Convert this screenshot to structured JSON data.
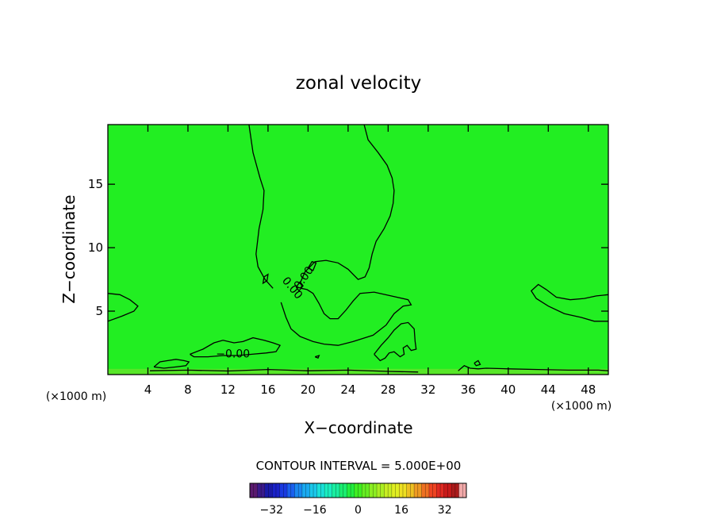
{
  "chart_data": {
    "type": "heatmap",
    "title": "zonal velocity",
    "xlabel": "X−coordinate",
    "ylabel": "Z−coordinate",
    "x_unit_left": "(×1000 m)",
    "x_unit_right": "(×1000 m)",
    "xlim": [
      0,
      50
    ],
    "ylim": [
      0,
      19.7
    ],
    "x_ticks": [
      4,
      8,
      12,
      16,
      20,
      24,
      28,
      32,
      36,
      40,
      44,
      48
    ],
    "y_ticks": [
      5,
      10,
      15
    ],
    "x_tick_labels": [
      "4",
      "8",
      "12",
      "16",
      "20",
      "24",
      "28",
      "32",
      "36",
      "40",
      "44",
      "48"
    ],
    "y_tick_labels": [
      "5",
      "10",
      "15"
    ],
    "field_color": "#22ee22",
    "contour_interval_text": "CONTOUR INTERVAL = 5.000E+00",
    "contour_labels": [
      {
        "text": "0.00",
        "x": 18.4,
        "z": 6.8,
        "angle": 50
      },
      {
        "text": "0.00",
        "x": 19.6,
        "z": 7.6,
        "angle": -55
      },
      {
        "text": "−0.00",
        "x": 12.5,
        "z": 1.6,
        "angle": 0
      }
    ],
    "contours": [
      {
        "level": 0,
        "points": [
          [
            14.1,
            19.7
          ],
          [
            14.5,
            17.5
          ],
          [
            15.2,
            15.5
          ],
          [
            15.6,
            14.5
          ],
          [
            15.5,
            13.0
          ],
          [
            15.1,
            11.5
          ],
          [
            14.8,
            9.5
          ],
          [
            15.0,
            8.5
          ],
          [
            15.7,
            7.5
          ],
          [
            16.5,
            6.8
          ]
        ]
      },
      {
        "level": 0,
        "points": [
          [
            17.3,
            5.7
          ],
          [
            17.8,
            4.5
          ],
          [
            18.3,
            3.6
          ],
          [
            19.2,
            3.0
          ],
          [
            20.5,
            2.6
          ],
          [
            21.6,
            2.4
          ],
          [
            23.0,
            2.3
          ],
          [
            24.5,
            2.6
          ],
          [
            26.5,
            3.1
          ],
          [
            27.8,
            3.9
          ],
          [
            28.6,
            4.8
          ],
          [
            29.5,
            5.4
          ],
          [
            30.3,
            5.5
          ],
          [
            30.0,
            5.9
          ],
          [
            28.3,
            6.2
          ],
          [
            26.6,
            6.5
          ],
          [
            25.2,
            6.4
          ],
          [
            24.5,
            5.8
          ],
          [
            23.8,
            5.1
          ],
          [
            23.0,
            4.4
          ],
          [
            22.2,
            4.4
          ],
          [
            21.6,
            4.8
          ],
          [
            21.1,
            5.6
          ],
          [
            20.5,
            6.4
          ],
          [
            19.9,
            6.7
          ],
          [
            19.3,
            6.8
          ]
        ]
      },
      {
        "level": 0,
        "points": [
          [
            19.2,
            7.2
          ],
          [
            19.7,
            8.1
          ],
          [
            20.7,
            8.9
          ],
          [
            21.8,
            9.0
          ],
          [
            23.0,
            8.8
          ],
          [
            24.0,
            8.3
          ],
          [
            25.0,
            7.5
          ],
          [
            25.7,
            7.7
          ],
          [
            26.1,
            8.4
          ],
          [
            26.4,
            9.5
          ],
          [
            26.8,
            10.5
          ],
          [
            27.6,
            11.5
          ],
          [
            28.2,
            12.5
          ],
          [
            28.5,
            13.5
          ],
          [
            28.6,
            14.5
          ],
          [
            28.4,
            15.5
          ],
          [
            27.9,
            16.5
          ],
          [
            27.0,
            17.5
          ],
          [
            26.0,
            18.5
          ],
          [
            25.6,
            19.7
          ]
        ]
      },
      {
        "level": 0,
        "points": [
          [
            0.0,
            6.4
          ],
          [
            1.2,
            6.3
          ],
          [
            2.2,
            5.9
          ],
          [
            3.0,
            5.4
          ],
          [
            2.6,
            5.0
          ],
          [
            1.4,
            4.6
          ],
          [
            0.0,
            4.2
          ]
        ]
      },
      {
        "level": 0,
        "points": [
          [
            50.0,
            6.3
          ],
          [
            48.8,
            6.2
          ],
          [
            47.6,
            6.0
          ],
          [
            46.2,
            5.9
          ],
          [
            44.8,
            6.1
          ],
          [
            43.8,
            6.7
          ],
          [
            43.0,
            7.1
          ],
          [
            42.3,
            6.6
          ],
          [
            42.8,
            6.0
          ],
          [
            44.0,
            5.4
          ],
          [
            45.6,
            4.8
          ],
          [
            47.3,
            4.5
          ],
          [
            48.6,
            4.2
          ],
          [
            50.0,
            4.2
          ]
        ]
      },
      {
        "level": 0,
        "points": [
          [
            8.2,
            1.6
          ],
          [
            9.5,
            2.0
          ],
          [
            10.6,
            2.5
          ],
          [
            11.5,
            2.7
          ],
          [
            12.6,
            2.5
          ],
          [
            13.5,
            2.6
          ],
          [
            14.5,
            2.9
          ],
          [
            15.6,
            2.7
          ],
          [
            16.5,
            2.5
          ],
          [
            17.2,
            2.3
          ],
          [
            16.8,
            1.8
          ],
          [
            15.8,
            1.7
          ],
          [
            14.4,
            1.6
          ],
          [
            13.0,
            1.5
          ],
          [
            11.5,
            1.5
          ],
          [
            10.0,
            1.4
          ],
          [
            8.6,
            1.4
          ],
          [
            8.2,
            1.6
          ]
        ]
      },
      {
        "level": 0,
        "points": [
          [
            4.6,
            0.6
          ],
          [
            5.2,
            1.0
          ],
          [
            6.0,
            1.1
          ],
          [
            6.8,
            1.2
          ],
          [
            7.6,
            1.1
          ],
          [
            8.1,
            1.0
          ],
          [
            7.8,
            0.7
          ],
          [
            6.8,
            0.6
          ],
          [
            5.6,
            0.5
          ],
          [
            4.6,
            0.6
          ]
        ]
      },
      {
        "level": 0,
        "points": [
          [
            26.6,
            1.6
          ],
          [
            27.3,
            2.3
          ],
          [
            28.0,
            2.9
          ],
          [
            28.6,
            3.5
          ],
          [
            29.3,
            4.0
          ],
          [
            30.0,
            4.1
          ],
          [
            30.6,
            3.6
          ],
          [
            30.7,
            2.6
          ],
          [
            30.8,
            2.0
          ],
          [
            30.3,
            1.9
          ],
          [
            29.9,
            2.3
          ],
          [
            29.5,
            2.1
          ],
          [
            29.6,
            1.6
          ],
          [
            29.2,
            1.4
          ],
          [
            28.6,
            1.8
          ],
          [
            28.1,
            1.7
          ],
          [
            27.7,
            1.3
          ],
          [
            27.2,
            1.1
          ],
          [
            26.6,
            1.6
          ]
        ]
      },
      {
        "level": 0,
        "points": [
          [
            4.2,
            0.3
          ],
          [
            8.0,
            0.35
          ],
          [
            12.0,
            0.28
          ],
          [
            16.0,
            0.4
          ],
          [
            20.0,
            0.3
          ],
          [
            24.0,
            0.35
          ],
          [
            28.0,
            0.25
          ],
          [
            31.0,
            0.2
          ]
        ]
      },
      {
        "level": 0,
        "points": [
          [
            35.0,
            0.3
          ],
          [
            35.6,
            0.7
          ],
          [
            36.2,
            0.5
          ],
          [
            37.0,
            0.45
          ],
          [
            37.8,
            0.5
          ],
          [
            40.0,
            0.45
          ],
          [
            43.0,
            0.4
          ],
          [
            46.0,
            0.35
          ],
          [
            49.0,
            0.35
          ],
          [
            50.0,
            0.3
          ]
        ]
      },
      {
        "level": 0,
        "points": [
          [
            15.6,
            7.7
          ],
          [
            16.0,
            7.9
          ],
          [
            15.9,
            7.4
          ],
          [
            15.5,
            7.2
          ],
          [
            15.6,
            7.7
          ]
        ]
      },
      {
        "level": 0,
        "points": [
          [
            18.8,
            6.9
          ],
          [
            19.2,
            7.3
          ],
          [
            19.5,
            7.0
          ],
          [
            19.1,
            6.6
          ],
          [
            18.8,
            6.9
          ]
        ]
      },
      {
        "level": 0,
        "points": [
          [
            20.0,
            8.4
          ],
          [
            20.4,
            8.9
          ],
          [
            20.8,
            8.8
          ],
          [
            20.5,
            8.2
          ],
          [
            20.0,
            8.4
          ]
        ]
      },
      {
        "level": 0,
        "points": [
          [
            36.6,
            0.9
          ],
          [
            37.0,
            1.1
          ],
          [
            37.2,
            0.8
          ],
          [
            36.8,
            0.7
          ],
          [
            36.6,
            0.9
          ]
        ]
      },
      {
        "level": 0,
        "points": [
          [
            20.7,
            1.4
          ],
          [
            21.1,
            1.5
          ],
          [
            21.0,
            1.3
          ],
          [
            20.7,
            1.4
          ]
        ]
      }
    ],
    "colorbar": {
      "min": -40,
      "max": 40,
      "ticks": [
        -32,
        -16,
        0,
        16,
        32
      ],
      "tick_labels": [
        "−32",
        "−16",
        "0",
        "16",
        "32"
      ],
      "colors": [
        "#5a1a6e",
        "#3a1a8a",
        "#1a1aa8",
        "#1a22c8",
        "#1a3ae0",
        "#1a60ee",
        "#1a88f0",
        "#1aaaf0",
        "#1ac8ea",
        "#1ae0d8",
        "#1aeec0",
        "#1aeea0",
        "#1aee70",
        "#22ee40",
        "#40ee22",
        "#66ee22",
        "#8cee22",
        "#aaee22",
        "#c8ee22",
        "#e0ee22",
        "#eee022",
        "#eec022",
        "#ee9a22",
        "#ee7022",
        "#ee4422",
        "#e02a22",
        "#c81a1a",
        "#aa1a1a",
        "#f0a8a8"
      ]
    }
  }
}
